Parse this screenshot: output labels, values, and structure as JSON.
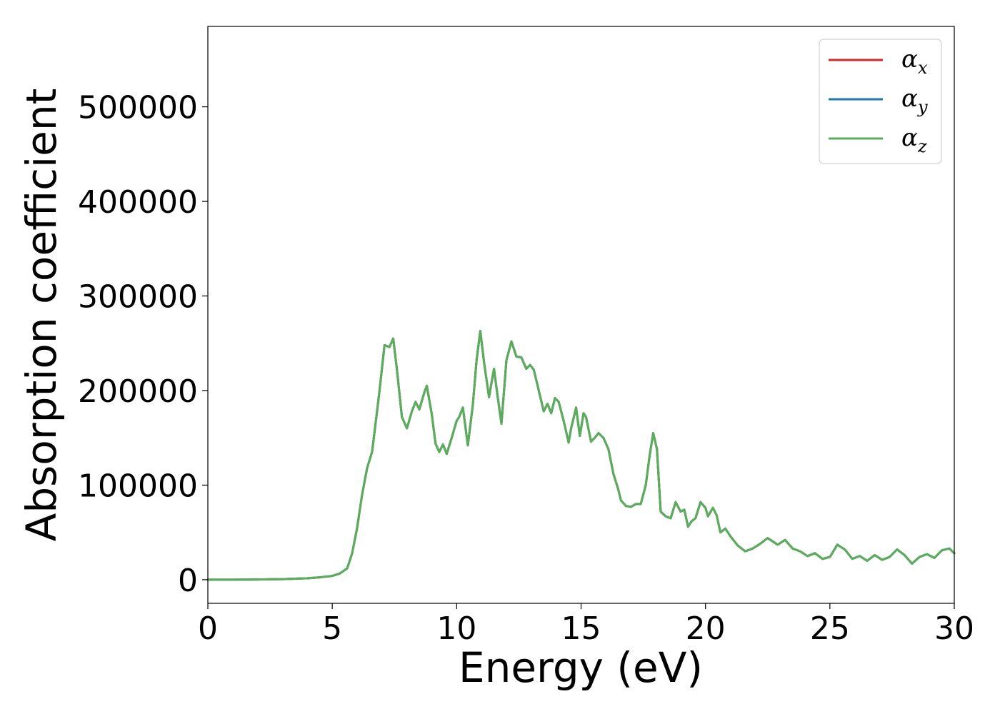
{
  "chart_data": {
    "type": "line",
    "title": "",
    "xlabel": "Energy (eV)",
    "ylabel": "Absorption coefficient",
    "xlim": [
      0,
      30
    ],
    "ylim": [
      -25000,
      585000
    ],
    "xticks": [
      0,
      5,
      10,
      15,
      20,
      25,
      30
    ],
    "yticks": [
      0,
      100000,
      200000,
      300000,
      400000,
      500000
    ],
    "grid": false,
    "legend_position": "top-right",
    "x": [
      0,
      1,
      2,
      3,
      4,
      4.5,
      5,
      5.3,
      5.6,
      5.8,
      6,
      6.2,
      6.4,
      6.6,
      6.8,
      6.9,
      7.1,
      7.3,
      7.45,
      7.6,
      7.8,
      8,
      8.2,
      8.35,
      8.5,
      8.7,
      8.8,
      9,
      9.15,
      9.3,
      9.45,
      9.6,
      9.8,
      10,
      10.1,
      10.25,
      10.45,
      10.65,
      10.8,
      10.95,
      11.1,
      11.3,
      11.5,
      11.65,
      11.8,
      12,
      12.2,
      12.4,
      12.6,
      12.8,
      12.95,
      13.1,
      13.3,
      13.5,
      13.65,
      13.8,
      13.95,
      14.1,
      14.3,
      14.5,
      14.6,
      14.8,
      14.95,
      15.1,
      15.2,
      15.4,
      15.55,
      15.7,
      15.9,
      16.1,
      16.3,
      16.5,
      16.6,
      16.8,
      17,
      17.2,
      17.4,
      17.6,
      17.75,
      17.9,
      18.05,
      18.2,
      18.4,
      18.6,
      18.8,
      19,
      19.15,
      19.3,
      19.45,
      19.6,
      19.8,
      20,
      20.1,
      20.3,
      20.45,
      20.6,
      20.8,
      21,
      21.3,
      21.6,
      21.9,
      22.2,
      22.5,
      22.9,
      23.2,
      23.5,
      23.8,
      24.1,
      24.4,
      24.7,
      25,
      25.3,
      25.6,
      25.9,
      26.2,
      26.5,
      26.8,
      27.1,
      27.4,
      27.7,
      28,
      28.3,
      28.6,
      28.9,
      29.2,
      29.5,
      29.8,
      30
    ],
    "series": [
      {
        "name": "αx",
        "color": "#d62728",
        "values": [
          0,
          0,
          200,
          600,
          1500,
          2500,
          4000,
          6500,
          12000,
          28000,
          55000,
          90000,
          118000,
          135000,
          178000,
          200000,
          248000,
          246000,
          255000,
          222000,
          172000,
          160000,
          178000,
          188000,
          180000,
          198000,
          205000,
          175000,
          144000,
          135000,
          143000,
          133000,
          150000,
          168000,
          172000,
          182000,
          142000,
          185000,
          232000,
          263000,
          230000,
          193000,
          223000,
          193000,
          165000,
          232000,
          252000,
          236000,
          235000,
          223000,
          227000,
          222000,
          200000,
          178000,
          186000,
          176000,
          192000,
          188000,
          168000,
          145000,
          160000,
          182000,
          152000,
          176000,
          172000,
          146000,
          150000,
          155000,
          150000,
          138000,
          112000,
          95000,
          84000,
          78000,
          77000,
          80000,
          80000,
          100000,
          130000,
          155000,
          138000,
          72000,
          67000,
          65000,
          82000,
          72000,
          74000,
          56000,
          62000,
          65000,
          82000,
          76000,
          67000,
          76000,
          68000,
          50000,
          54000,
          46000,
          36000,
          30000,
          33000,
          38000,
          44000,
          37000,
          42000,
          33000,
          30000,
          25000,
          28000,
          22000,
          24000,
          37000,
          32000,
          22000,
          25000,
          20000,
          26000,
          21000,
          24000,
          32000,
          26000,
          17000,
          24000,
          27000,
          23000,
          31000,
          33000,
          28000
        ]
      },
      {
        "name": "αy",
        "color": "#1f77b4",
        "values": [
          0,
          0,
          200,
          600,
          1500,
          2500,
          4000,
          6500,
          12000,
          28000,
          55000,
          90000,
          118000,
          135000,
          178000,
          200000,
          248000,
          246000,
          255000,
          222000,
          172000,
          160000,
          178000,
          188000,
          180000,
          198000,
          205000,
          175000,
          144000,
          135000,
          143000,
          133000,
          150000,
          168000,
          172000,
          182000,
          142000,
          185000,
          232000,
          263000,
          230000,
          193000,
          223000,
          193000,
          165000,
          232000,
          252000,
          236000,
          235000,
          223000,
          227000,
          222000,
          200000,
          178000,
          186000,
          176000,
          192000,
          188000,
          168000,
          145000,
          160000,
          182000,
          152000,
          176000,
          172000,
          146000,
          150000,
          155000,
          150000,
          138000,
          112000,
          95000,
          84000,
          78000,
          77000,
          80000,
          80000,
          100000,
          130000,
          155000,
          138000,
          72000,
          67000,
          65000,
          82000,
          72000,
          74000,
          56000,
          62000,
          65000,
          82000,
          76000,
          67000,
          76000,
          68000,
          50000,
          54000,
          46000,
          36000,
          30000,
          33000,
          38000,
          44000,
          37000,
          42000,
          33000,
          30000,
          25000,
          28000,
          22000,
          24000,
          37000,
          32000,
          22000,
          25000,
          20000,
          26000,
          21000,
          24000,
          32000,
          26000,
          17000,
          24000,
          27000,
          23000,
          31000,
          33000,
          28000
        ]
      },
      {
        "name": "αz",
        "color": "#5aae5a",
        "values": [
          0,
          0,
          200,
          600,
          1500,
          2500,
          4000,
          6500,
          12000,
          28000,
          55000,
          90000,
          118000,
          135000,
          178000,
          200000,
          248000,
          246000,
          255000,
          222000,
          172000,
          160000,
          178000,
          188000,
          180000,
          198000,
          205000,
          175000,
          144000,
          135000,
          143000,
          133000,
          150000,
          168000,
          172000,
          182000,
          142000,
          185000,
          232000,
          263000,
          230000,
          193000,
          223000,
          193000,
          165000,
          232000,
          252000,
          236000,
          235000,
          223000,
          227000,
          222000,
          200000,
          178000,
          186000,
          176000,
          192000,
          188000,
          168000,
          145000,
          160000,
          182000,
          152000,
          176000,
          172000,
          146000,
          150000,
          155000,
          150000,
          138000,
          112000,
          95000,
          84000,
          78000,
          77000,
          80000,
          80000,
          100000,
          130000,
          155000,
          138000,
          72000,
          67000,
          65000,
          82000,
          72000,
          74000,
          56000,
          62000,
          65000,
          82000,
          76000,
          67000,
          76000,
          68000,
          50000,
          54000,
          46000,
          36000,
          30000,
          33000,
          38000,
          44000,
          37000,
          42000,
          33000,
          30000,
          25000,
          28000,
          22000,
          24000,
          37000,
          32000,
          22000,
          25000,
          20000,
          26000,
          21000,
          24000,
          32000,
          26000,
          17000,
          24000,
          27000,
          23000,
          31000,
          33000,
          28000
        ]
      }
    ],
    "legend": [
      {
        "symbol": "α",
        "sub": "x",
        "color": "#d62728"
      },
      {
        "symbol": "α",
        "sub": "y",
        "color": "#1f77b4"
      },
      {
        "symbol": "α",
        "sub": "z",
        "color": "#5aae5a"
      }
    ]
  }
}
